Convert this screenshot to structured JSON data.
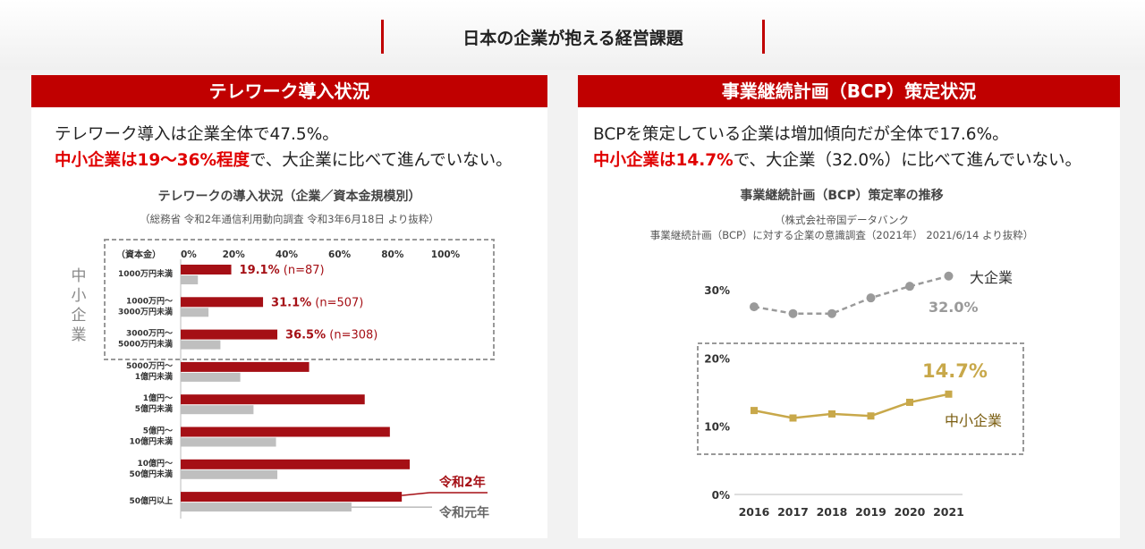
{
  "header": {
    "title": "日本の企業が抱える経営課題"
  },
  "colors": {
    "accent": "#c00000",
    "bar_2020": "#a50f15",
    "bar_2019": "#bfbfbf",
    "highlight": "#e00000",
    "sme_line": "#c8a84a",
    "large_line": "#9a9a9a"
  },
  "left_panel": {
    "title": "テレワーク導入状況",
    "summary_line1": "テレワーク導入は企業全体で47.5%。",
    "summary_line2_highlight": "中小企業は19〜36%程度",
    "summary_line2_rest": "で、大企業に比べて進んでいない。",
    "chart_title": "テレワークの導入状況（企業／資本金規模別）",
    "chart_source": "（総務省 令和2年通信利用動向調査 令和3年6月18日 より抜粋）"
  },
  "right_panel": {
    "title": "事業継続計画（BCP）策定状況",
    "summary_line1": "BCPを策定している企業は増加傾向だが全体で17.6%。",
    "summary_line2_highlight": "中小企業は14.7%",
    "summary_line2_rest": "で、大企業（32.0%）に比べて進んでいない。",
    "chart_title": "事業継続計画（BCP）策定率の推移",
    "chart_source_line1": "（株式会社帝国データバンク",
    "chart_source_line2": "事業継続計画（BCP）に対する企業の意識調査（2021年） 2021/6/14 より抜粋）"
  },
  "chart_data": [
    {
      "type": "bar",
      "orientation": "horizontal",
      "title": "テレワークの導入状況（企業／資本金規模別）",
      "axis_label": "（資本金）",
      "xlim": [
        0,
        100
      ],
      "ticks": [
        "0%",
        "20%",
        "40%",
        "60%",
        "80%",
        "100%"
      ],
      "tick_values": [
        0,
        20,
        40,
        60,
        80,
        100
      ],
      "categories": [
        "1000万円未満",
        "1000万円〜\n3000万円未満",
        "3000万円〜\n5000万円未満",
        "5000万円〜\n1億円未満",
        "1億円〜\n5億円未満",
        "5億円〜\n10億円未満",
        "10億円〜\n50億円未満",
        "50億円以上"
      ],
      "series": [
        {
          "name": "令和2年",
          "values": [
            19.1,
            31.1,
            36.5,
            48.5,
            69.5,
            79.0,
            86.5,
            83.5
          ]
        },
        {
          "name": "令和元年",
          "values": [
            6.5,
            10.5,
            15.0,
            22.5,
            27.5,
            36.0,
            36.5,
            64.5
          ]
        }
      ],
      "data_labels": [
        {
          "value": "19.1%",
          "n": "(n=87)"
        },
        {
          "value": "31.1%",
          "n": "(n=507)"
        },
        {
          "value": "36.5%",
          "n": "(n=308)"
        }
      ],
      "group_label": "中小企業"
    },
    {
      "type": "line",
      "title": "事業継続計画（BCP）策定率の推移",
      "x": [
        2016,
        2017,
        2018,
        2019,
        2020,
        2021
      ],
      "ylim": [
        0,
        35
      ],
      "yticks": [
        0,
        10,
        20,
        30
      ],
      "ytick_labels": [
        "0%",
        "10%",
        "20%",
        "30%"
      ],
      "series": [
        {
          "name": "大企業",
          "values": [
            27.5,
            26.5,
            26.5,
            28.8,
            30.5,
            32.0
          ],
          "end_label": "32.0%"
        },
        {
          "name": "中小企業",
          "values": [
            12.3,
            11.2,
            11.8,
            11.5,
            13.5,
            14.7
          ],
          "end_label": "14.7%"
        }
      ]
    }
  ]
}
